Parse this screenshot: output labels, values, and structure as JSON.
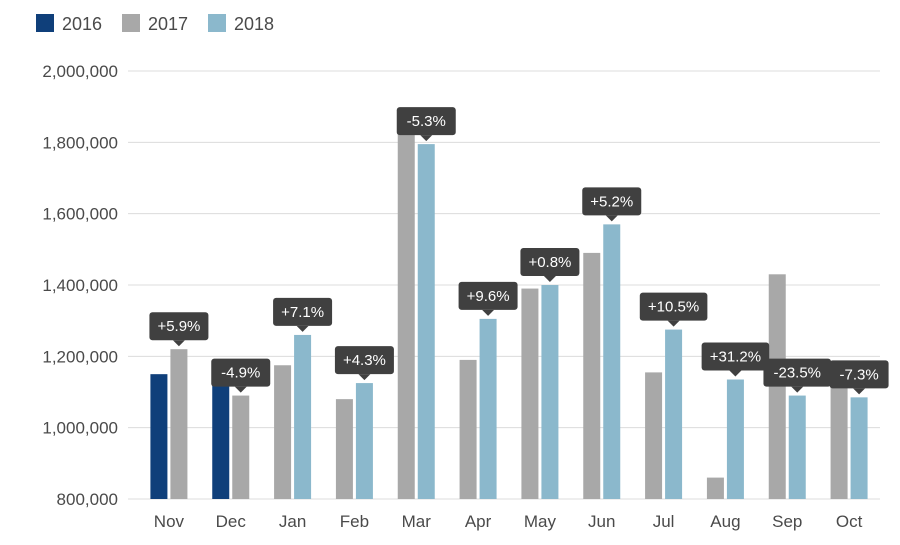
{
  "chart_data": {
    "type": "bar",
    "categories": [
      "Nov",
      "Dec",
      "Jan",
      "Feb",
      "Mar",
      "Apr",
      "May",
      "Jun",
      "Jul",
      "Aug",
      "Sep",
      "Oct"
    ],
    "series": [
      {
        "name": "2016",
        "color": "#0f3f7a",
        "values": [
          1150000,
          1150000,
          null,
          null,
          null,
          null,
          null,
          null,
          null,
          null,
          null,
          null
        ]
      },
      {
        "name": "2017",
        "color": "#a8a8a8",
        "values": [
          1220000,
          1090000,
          1175000,
          1080000,
          1890000,
          1190000,
          1390000,
          1490000,
          1155000,
          860000,
          1430000,
          1165000
        ]
      },
      {
        "name": "2018",
        "color": "#8bb8cc",
        "values": [
          null,
          null,
          1260000,
          1125000,
          1795000,
          1305000,
          1400000,
          1570000,
          1275000,
          1135000,
          1090000,
          1085000
        ]
      }
    ],
    "annotations": [
      "+5.9%",
      "-4.9%",
      "+7.1%",
      "+4.3%",
      "-5.3%",
      "+9.6%",
      "+0.8%",
      "+5.2%",
      "+10.5%",
      "+31.2%",
      "-23.5%",
      "-7.3%"
    ],
    "y_tick_labels": [
      "800,000",
      "1,000,000",
      "1,200,000",
      "1,400,000",
      "1,600,000",
      "1,800,000",
      "2,000,000"
    ],
    "y_ticks": [
      800000,
      1000000,
      1200000,
      1400000,
      1600000,
      1800000,
      2000000
    ],
    "ylim": [
      800000,
      2000000
    ],
    "title": "",
    "xlabel": "",
    "ylabel": "",
    "grid": true,
    "legend_position": "top-left",
    "callout_color": "#404040"
  }
}
